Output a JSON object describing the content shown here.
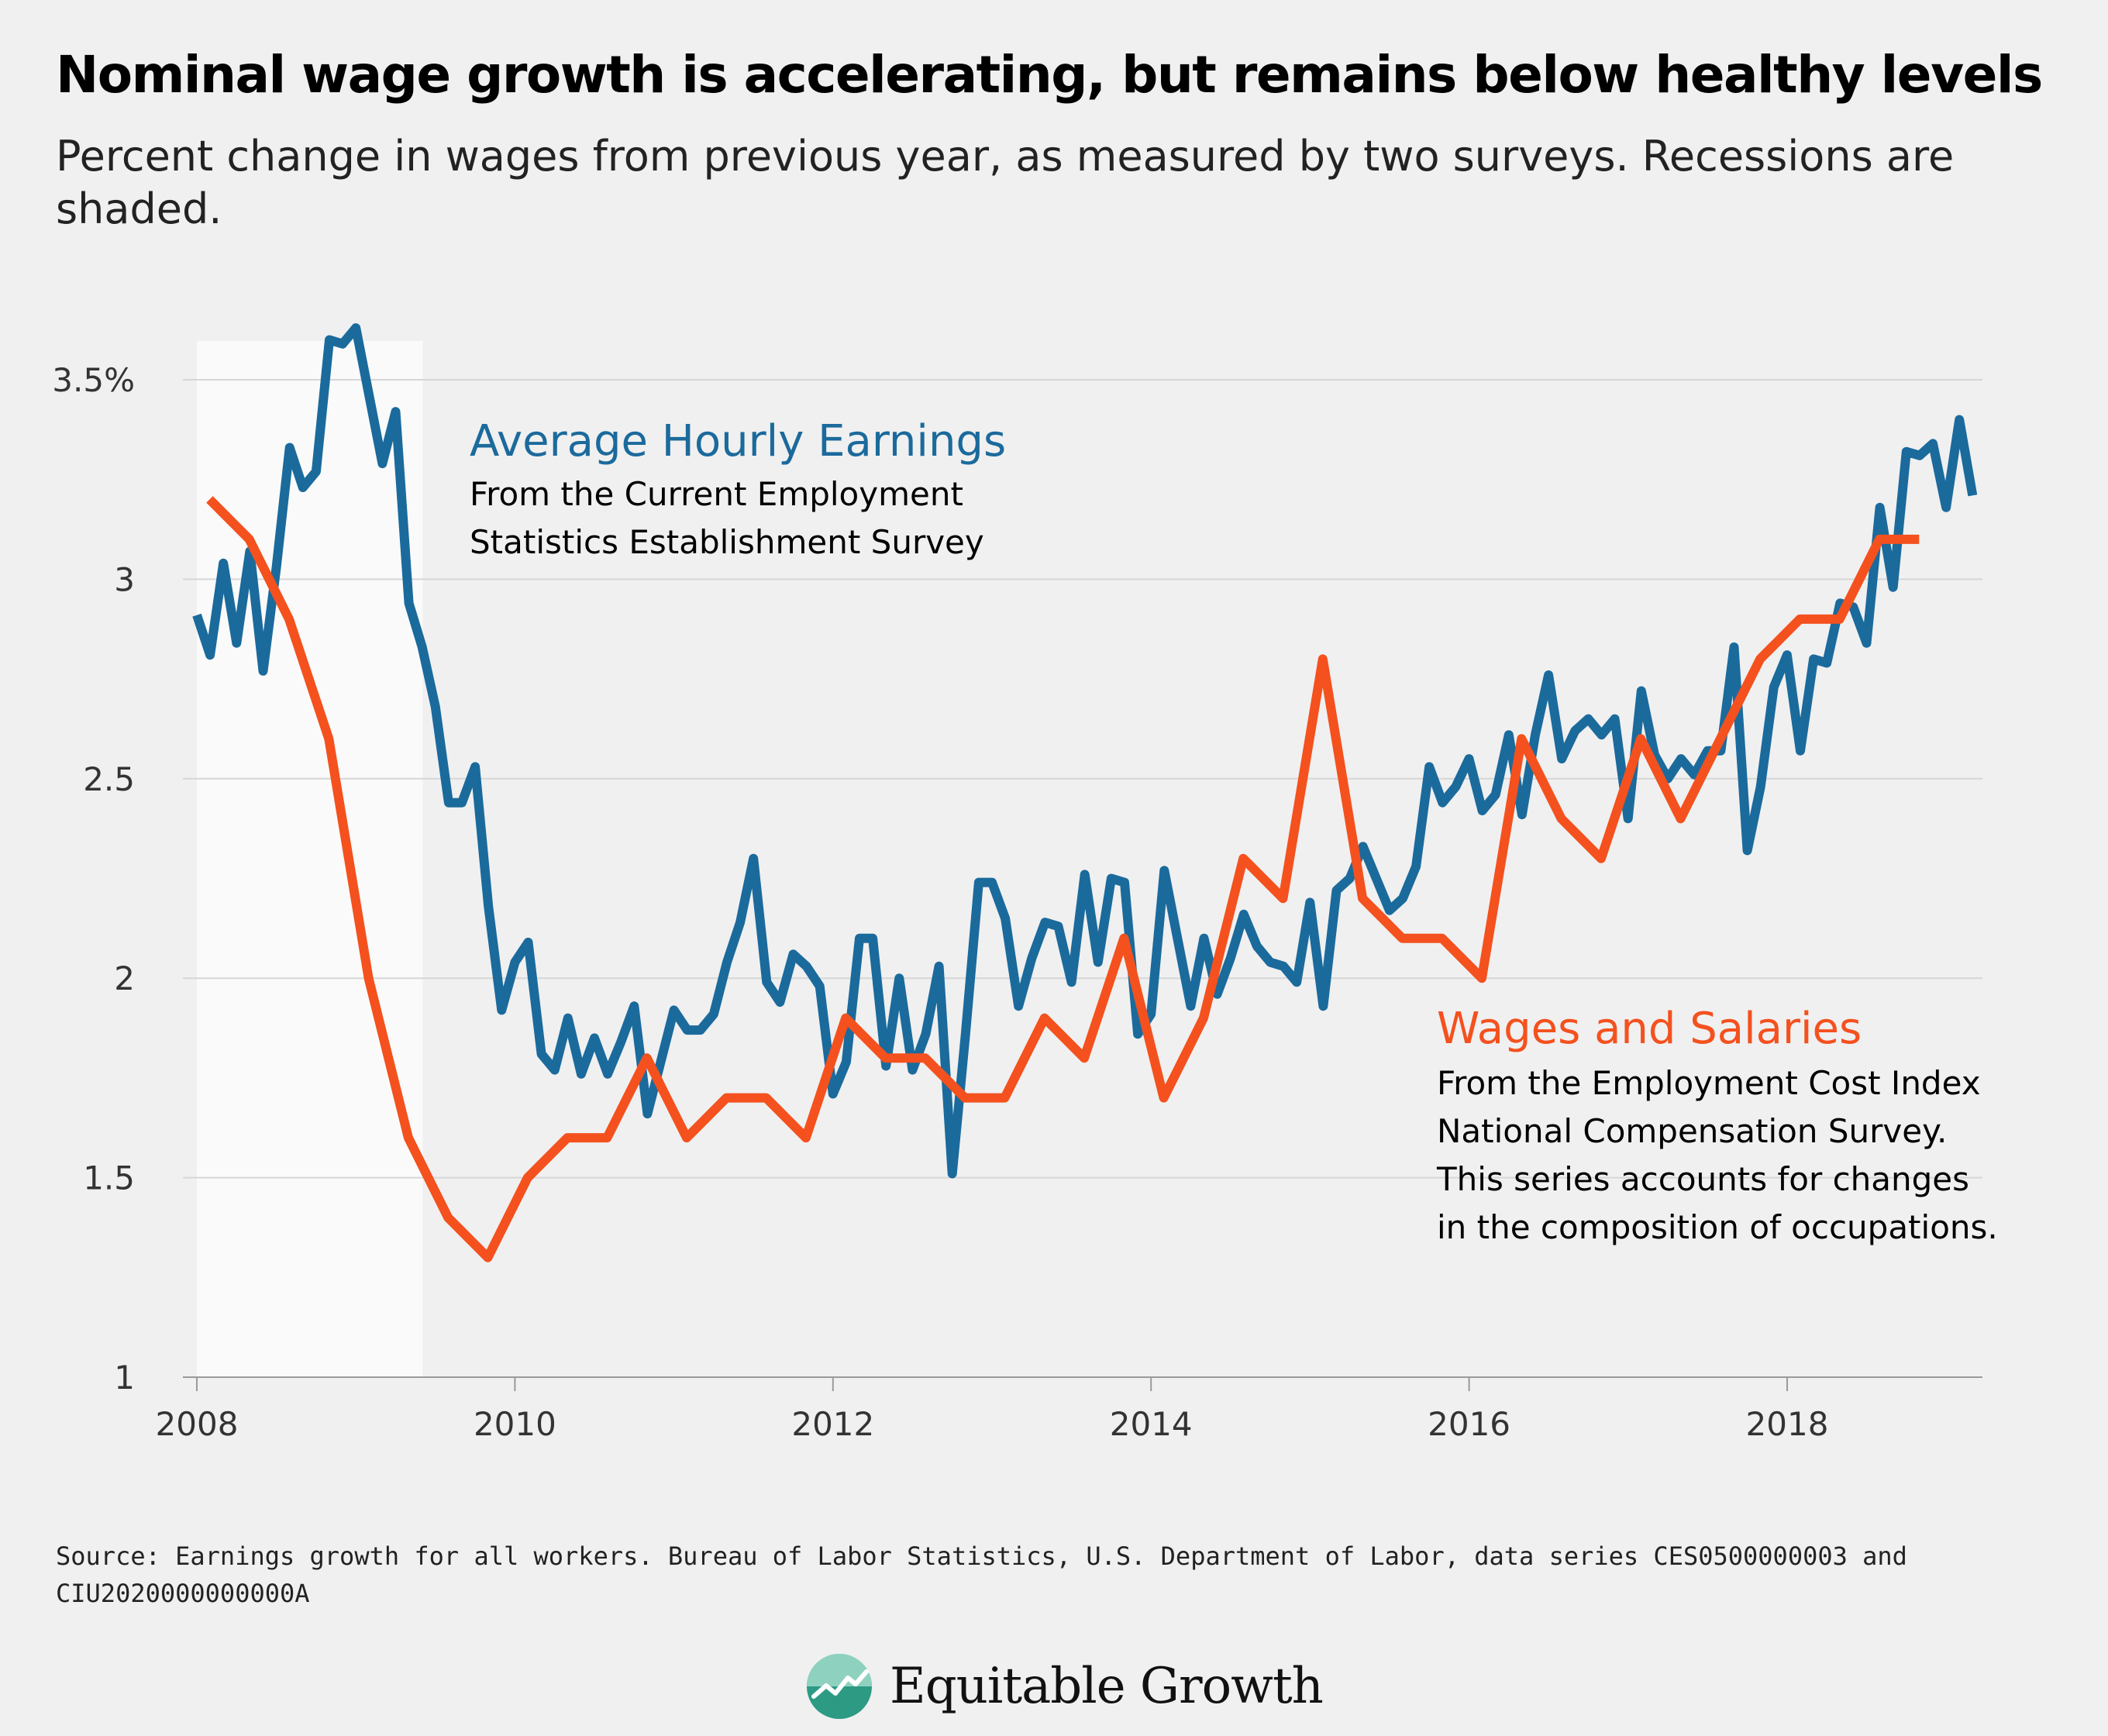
{
  "title": "Nominal wage growth is accelerating, but remains below healthy levels",
  "subtitle": "Percent change in wages from previous year, as measured by two surveys. Recessions are shaded.",
  "source": "Source: Earnings growth for all workers. Bureau of Labor Statistics, U.S. Department of Labor, data series CES0500000003 and CIU2020000000000A",
  "brand": "Equitable Growth",
  "chart_data": {
    "type": "line",
    "title": "Nominal wage growth is accelerating, but remains below healthy levels",
    "subtitle": "Percent change in wages from previous year, as measured by two surveys. Recessions are shaded.",
    "xlabel": "",
    "ylabel": "",
    "xlim": [
      2008.0,
      2019.25
    ],
    "ylim": [
      1,
      3.6
    ],
    "x_ticks": [
      2008,
      2010,
      2012,
      2014,
      2016,
      2018
    ],
    "x_tick_labels": [
      "2008",
      "2010",
      "2012",
      "2014",
      "2016",
      "2018"
    ],
    "y_ticks": [
      1,
      1.5,
      2,
      2.5,
      3,
      3.5
    ],
    "y_tick_labels": [
      "1",
      "1.5",
      "2",
      "2.5",
      "3",
      "3.5%"
    ],
    "grid": "horizontal",
    "recession": [
      2008.0,
      2009.42
    ],
    "series": [
      {
        "id": "ahe",
        "color": "#1b6a9c",
        "label": {
          "title": "Average Hourly Earnings",
          "lines": [
            "From the Current Employment",
            "Statistics Establishment Survey"
          ]
        },
        "x_start": 2008.0,
        "x_step": 0.08333,
        "values": [
          2.91,
          2.81,
          3.04,
          2.84,
          3.07,
          2.77,
          3.03,
          3.33,
          3.23,
          3.27,
          3.6,
          3.59,
          3.63,
          3.46,
          3.29,
          3.42,
          2.94,
          2.83,
          2.68,
          2.44,
          2.44,
          2.53,
          2.18,
          1.92,
          2.04,
          2.09,
          1.81,
          1.77,
          1.9,
          1.76,
          1.85,
          1.76,
          1.84,
          1.93,
          1.66,
          1.79,
          1.92,
          1.87,
          1.87,
          1.91,
          2.04,
          2.14,
          2.3,
          1.99,
          1.94,
          2.06,
          2.03,
          1.98,
          1.71,
          1.79,
          2.1,
          2.1,
          1.78,
          2.0,
          1.77,
          1.86,
          2.03,
          1.51,
          1.86,
          2.24,
          2.24,
          2.15,
          1.93,
          2.05,
          2.14,
          2.13,
          1.99,
          2.26,
          2.04,
          2.25,
          2.24,
          1.86,
          1.91,
          2.27,
          2.1,
          1.93,
          2.1,
          1.96,
          2.05,
          2.16,
          2.08,
          2.04,
          2.03,
          1.99,
          2.19,
          1.93,
          2.22,
          2.25,
          2.33,
          2.25,
          2.17,
          2.2,
          2.28,
          2.53,
          2.44,
          2.48,
          2.55,
          2.42,
          2.46,
          2.61,
          2.41,
          2.61,
          2.76,
          2.55,
          2.62,
          2.65,
          2.61,
          2.65,
          2.4,
          2.72,
          2.56,
          2.5,
          2.55,
          2.51,
          2.57,
          2.57,
          2.83,
          2.32,
          2.48,
          2.73,
          2.81,
          2.57,
          2.8,
          2.79,
          2.94,
          2.93,
          2.84,
          3.18,
          2.98,
          3.32,
          3.31,
          3.34,
          3.18,
          3.4,
          3.21
        ]
      },
      {
        "id": "eci",
        "color": "#f4511e",
        "label": {
          "title": "Wages and Salaries",
          "lines": [
            "From the Employment Cost Index",
            "National Compensation Survey.",
            "This series accounts for changes",
            "in the composition of occupations."
          ]
        },
        "x": [
          2008.08,
          2008.33,
          2008.58,
          2008.83,
          2009.08,
          2009.33,
          2009.58,
          2009.83,
          2010.08,
          2010.33,
          2010.58,
          2010.83,
          2011.08,
          2011.33,
          2011.58,
          2011.83,
          2012.08,
          2012.33,
          2012.58,
          2012.83,
          2013.08,
          2013.33,
          2013.58,
          2013.83,
          2014.08,
          2014.33,
          2014.58,
          2014.83,
          2015.08,
          2015.33,
          2015.58,
          2015.83,
          2016.08,
          2016.33,
          2016.58,
          2016.83,
          2017.08,
          2017.33,
          2017.58,
          2017.83,
          2018.08,
          2018.33,
          2018.58,
          2018.83
        ],
        "values": [
          3.2,
          3.1,
          2.9,
          2.6,
          2.0,
          1.6,
          1.4,
          1.3,
          1.5,
          1.6,
          1.6,
          1.8,
          1.6,
          1.7,
          1.7,
          1.6,
          1.9,
          1.8,
          1.8,
          1.7,
          1.7,
          1.9,
          1.8,
          2.1,
          1.7,
          1.9,
          2.3,
          2.2,
          2.8,
          2.2,
          2.1,
          2.1,
          2.0,
          2.6,
          2.4,
          2.3,
          2.6,
          2.4,
          2.6,
          2.8,
          2.9,
          2.9,
          3.1,
          3.1
        ]
      }
    ]
  }
}
